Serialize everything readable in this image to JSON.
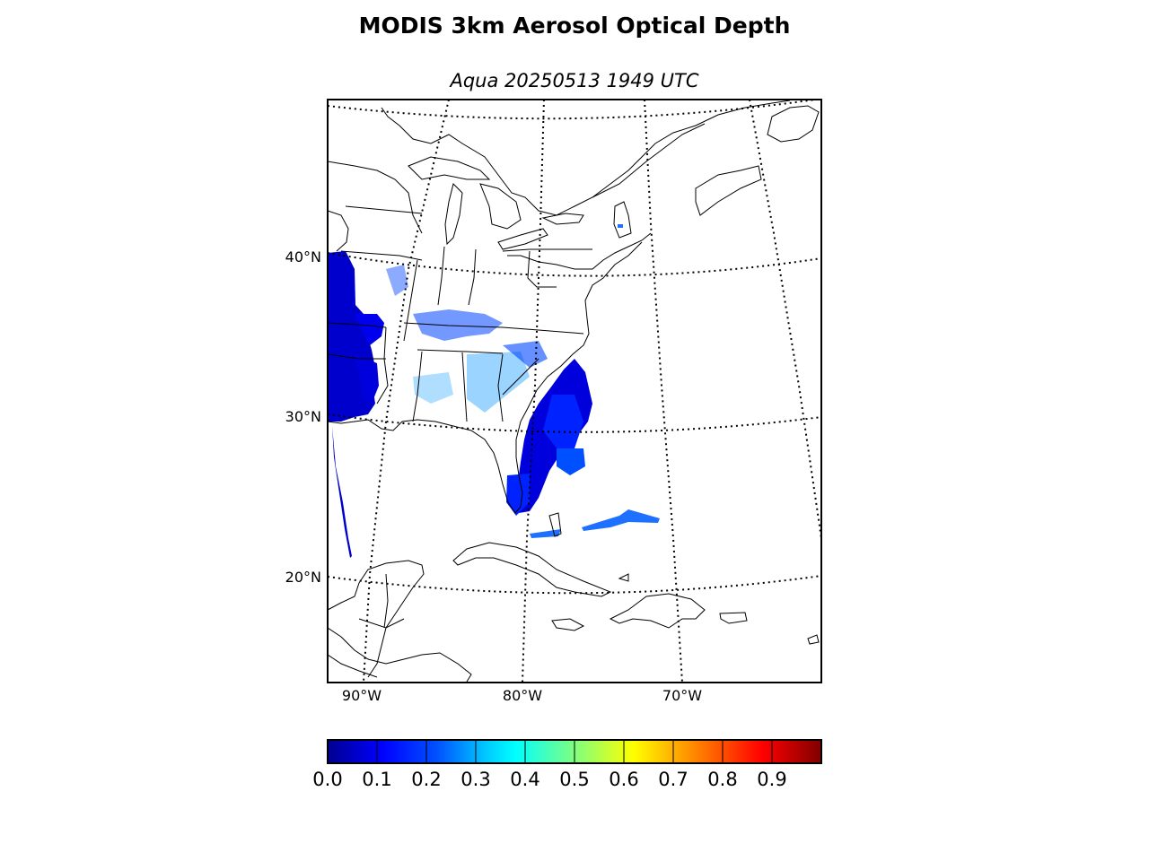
{
  "title": "MODIS 3km Aerosol Optical Depth",
  "subtitle": "Aqua 20250513 1949 UTC",
  "lat_labels": [
    "40°N",
    "30°N",
    "20°N"
  ],
  "lon_labels": [
    "90°W",
    "80°W",
    "70°W"
  ],
  "colorbar": {
    "colormap": "jet",
    "min": 0.0,
    "max": 1.0,
    "tick_labels": [
      "0.0",
      "0.1",
      "0.2",
      "0.3",
      "0.4",
      "0.5",
      "0.6",
      "0.7",
      "0.8",
      "0.9"
    ],
    "colors": [
      "#00008f",
      "#0000ff",
      "#0050ff",
      "#00a0ff",
      "#00ffff",
      "#50ffaf",
      "#afff50",
      "#ffff00",
      "#ffaf00",
      "#ff5000",
      "#ff0000",
      "#8f0000"
    ]
  },
  "colors": {
    "land_outline": "#000000",
    "aod_low": "#0000cc",
    "aod_mid": "#0044ff",
    "aod_high": "#1ea0ff"
  }
}
